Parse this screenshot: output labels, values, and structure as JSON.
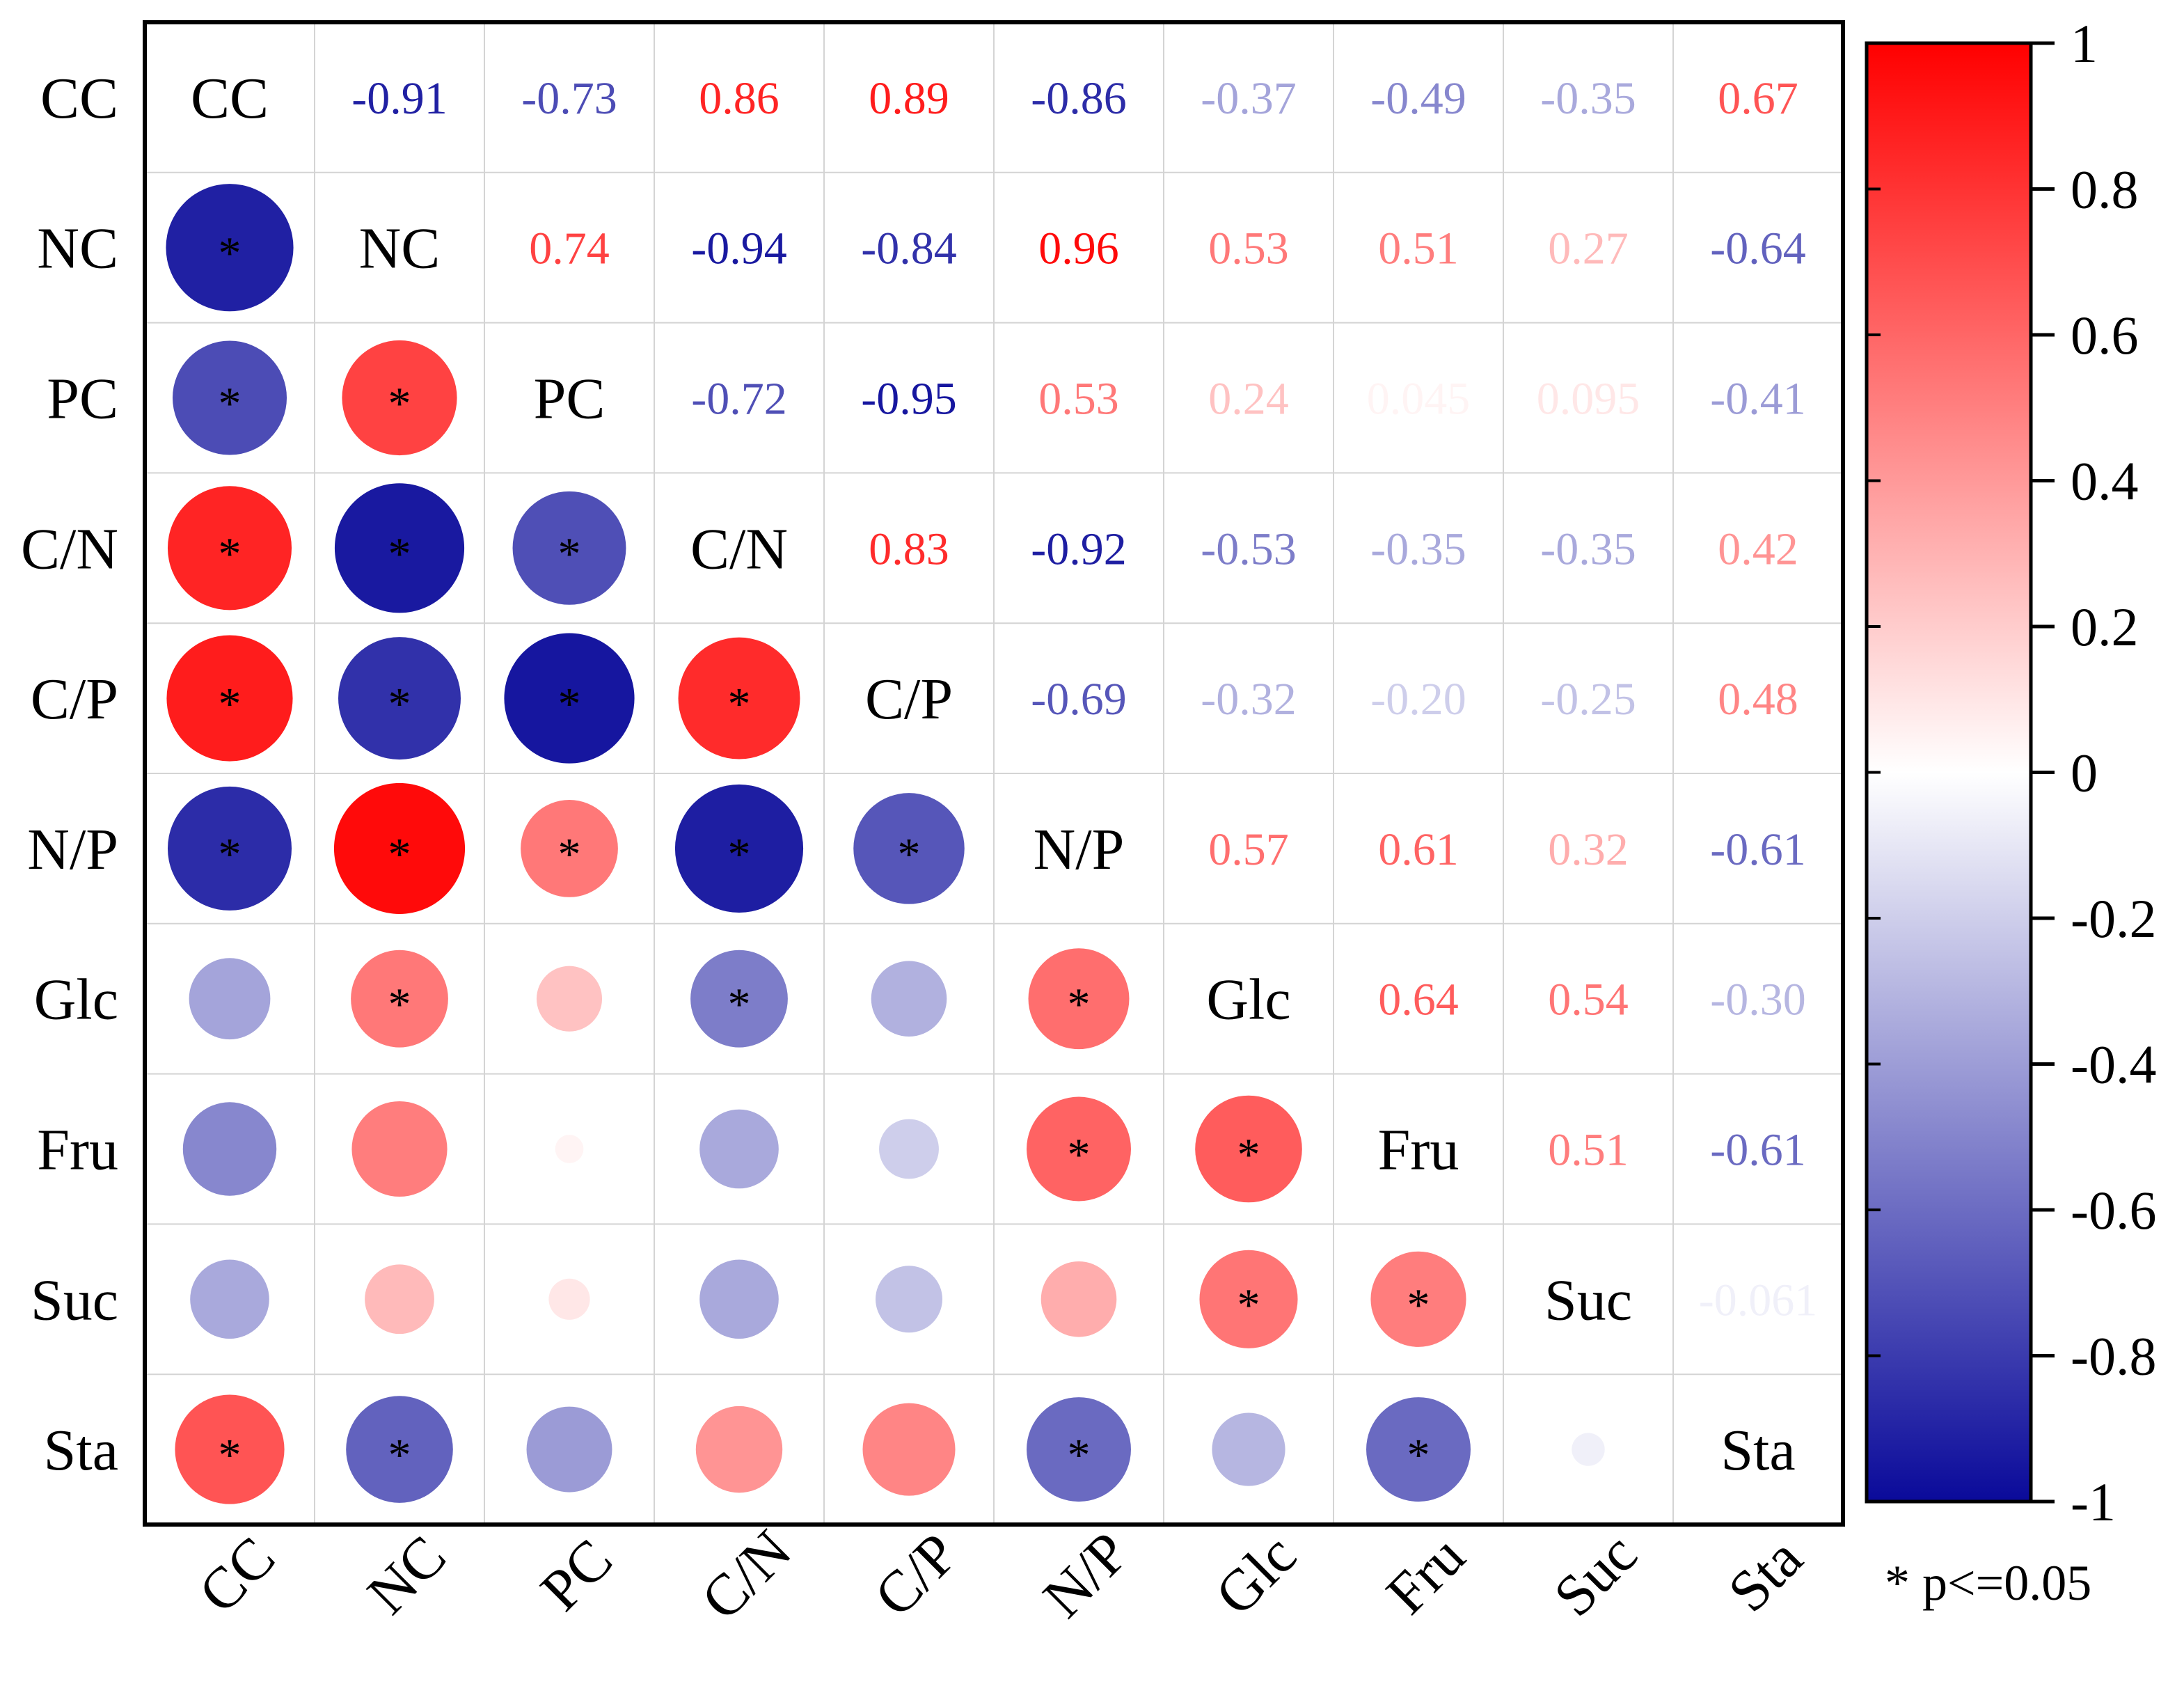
{
  "chart_data": {
    "type": "heatmap",
    "subtype": "correlation-matrix",
    "variables": [
      "CC",
      "NC",
      "PC",
      "C/N",
      "C/P",
      "N/P",
      "Glc",
      "Fru",
      "Suc",
      "Sta"
    ],
    "matrix": [
      [
        1,
        -0.91,
        -0.73,
        0.86,
        0.89,
        -0.86,
        -0.37,
        -0.49,
        -0.35,
        0.67
      ],
      [
        -0.91,
        1,
        0.74,
        -0.94,
        -0.84,
        0.96,
        0.53,
        0.51,
        0.27,
        -0.64
      ],
      [
        -0.73,
        0.74,
        1,
        -0.72,
        -0.95,
        0.53,
        0.24,
        0.045,
        0.095,
        -0.41
      ],
      [
        0.86,
        -0.94,
        -0.72,
        1,
        0.83,
        -0.92,
        -0.53,
        -0.35,
        -0.35,
        0.42
      ],
      [
        0.89,
        -0.84,
        -0.95,
        0.83,
        1,
        -0.69,
        -0.32,
        -0.2,
        -0.25,
        0.48
      ],
      [
        -0.86,
        0.96,
        0.53,
        -0.92,
        -0.69,
        1,
        0.57,
        0.61,
        0.32,
        -0.61
      ],
      [
        -0.37,
        0.53,
        0.24,
        -0.53,
        -0.32,
        0.57,
        1,
        0.64,
        0.54,
        -0.3
      ],
      [
        -0.49,
        0.51,
        0.045,
        -0.35,
        -0.2,
        0.61,
        0.64,
        1,
        0.51,
        -0.61
      ],
      [
        -0.35,
        0.27,
        0.095,
        -0.35,
        -0.25,
        0.32,
        0.54,
        0.51,
        1,
        -0.061
      ],
      [
        0.67,
        -0.64,
        -0.41,
        0.42,
        0.48,
        -0.61,
        -0.3,
        -0.61,
        -0.061,
        1
      ]
    ],
    "upper_labels": [
      [
        "",
        "-0.91",
        "-0.73",
        "0.86",
        "0.89",
        "-0.86",
        "-0.37",
        "-0.49",
        "-0.35",
        "0.67"
      ],
      [
        "",
        "",
        "0.74",
        "-0.94",
        "-0.84",
        "0.96",
        "0.53",
        "0.51",
        "0.27",
        "-0.64"
      ],
      [
        "",
        "",
        "",
        "-0.72",
        "-0.95",
        "0.53",
        "0.24",
        "0.045",
        "0.095",
        "-0.41"
      ],
      [
        "",
        "",
        "",
        "",
        "0.83",
        "-0.92",
        "-0.53",
        "-0.35",
        "-0.35",
        "0.42"
      ],
      [
        "",
        "",
        "",
        "",
        "",
        "-0.69",
        "-0.32",
        "-0.20",
        "-0.25",
        "0.48"
      ],
      [
        "",
        "",
        "",
        "",
        "",
        "",
        "0.57",
        "0.61",
        "0.32",
        "-0.61"
      ],
      [
        "",
        "",
        "",
        "",
        "",
        "",
        "",
        "0.64",
        "0.54",
        "-0.30"
      ],
      [
        "",
        "",
        "",
        "",
        "",
        "",
        "",
        "",
        "0.51",
        "-0.61"
      ],
      [
        "",
        "",
        "",
        "",
        "",
        "",
        "",
        "",
        "",
        "-0.061"
      ],
      [
        "",
        "",
        "",
        "",
        "",
        "",
        "",
        "",
        "",
        ""
      ]
    ],
    "significant": [
      [
        false,
        true,
        true,
        true,
        true,
        true,
        false,
        false,
        false,
        true
      ],
      [
        true,
        false,
        true,
        true,
        true,
        true,
        true,
        false,
        false,
        true
      ],
      [
        true,
        true,
        false,
        true,
        true,
        true,
        false,
        false,
        false,
        false
      ],
      [
        true,
        true,
        true,
        false,
        true,
        true,
        true,
        false,
        false,
        false
      ],
      [
        true,
        true,
        true,
        true,
        false,
        true,
        false,
        false,
        false,
        false
      ],
      [
        true,
        true,
        true,
        true,
        true,
        false,
        true,
        true,
        false,
        true
      ],
      [
        false,
        true,
        false,
        true,
        false,
        true,
        false,
        true,
        true,
        false
      ],
      [
        false,
        false,
        false,
        false,
        false,
        true,
        true,
        false,
        true,
        true
      ],
      [
        false,
        false,
        false,
        false,
        false,
        false,
        true,
        true,
        false,
        false
      ],
      [
        true,
        true,
        false,
        false,
        false,
        true,
        false,
        true,
        false,
        false
      ]
    ],
    "significance_marker": "*",
    "colorbar": {
      "range": [
        -1,
        1
      ],
      "ticks": [
        "1",
        "0.8",
        "0.6",
        "0.4",
        "0.2",
        "0",
        "-0.2",
        "-0.4",
        "-0.6",
        "-0.8",
        "-1"
      ],
      "low_color": "#0a0a9a",
      "mid_color": "#ffffff",
      "high_color": "#ff0000"
    },
    "legend_note": "* p<=0.05"
  }
}
